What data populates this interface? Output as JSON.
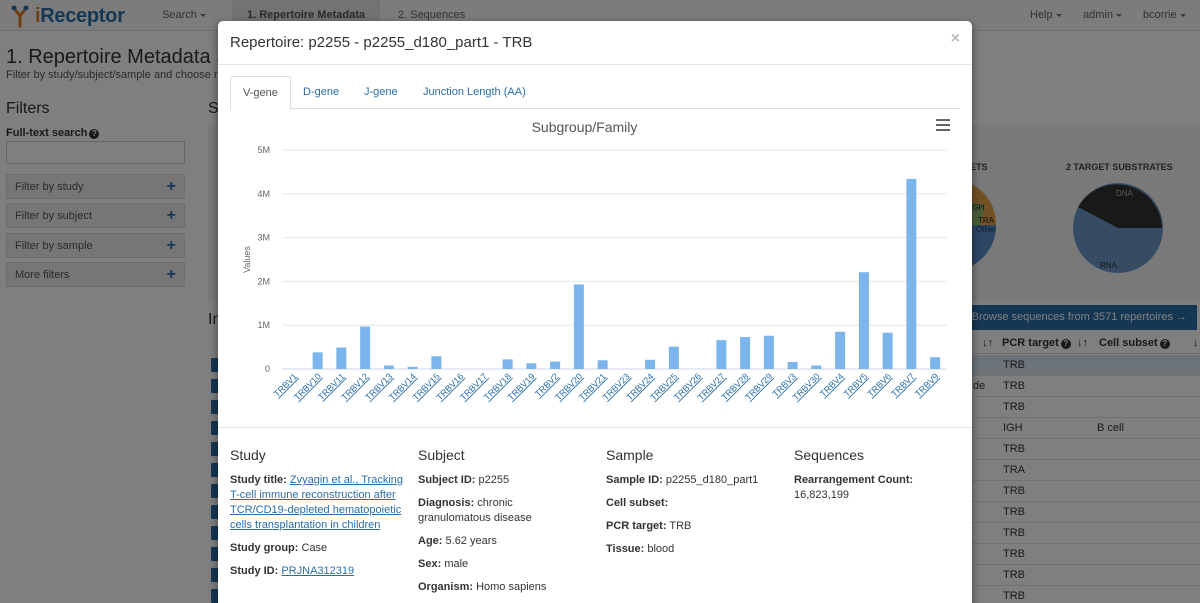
{
  "nav": {
    "logo_i": "i",
    "logo_rest": "Receptor",
    "search": "Search",
    "metadata": "1. Repertoire Metadata",
    "sequences": "2. Sequences",
    "help": "Help",
    "admin": "admin",
    "user": "bcorrie"
  },
  "page": {
    "title": "1. Repertoire Metadata Se",
    "subtitle": "Filter by study/subject/sample and choose re"
  },
  "filters": {
    "heading": "Filters",
    "fulltext_label": "Full-text search",
    "fulltext_value": "",
    "items": [
      "Filter by study",
      "Filter by subject",
      "Filter by sample",
      "More filters"
    ]
  },
  "background": {
    "section_letter_s": "S",
    "section_letter_i": "In",
    "sets_label": "ETS",
    "target_substrates": "2 TARGET SUBSTRATES",
    "browse_button": "Browse sequences from 3571 repertoires →",
    "table_headers": [
      "PCR target",
      "Cell subset"
    ],
    "rows": [
      {
        "pre": "",
        "pcr": "TRB",
        "cell": ""
      },
      {
        "pre": "de",
        "pcr": "TRB",
        "cell": ""
      },
      {
        "pre": "",
        "pcr": "TRB",
        "cell": ""
      },
      {
        "pre": "",
        "pcr": "IGH",
        "cell": "B cell"
      },
      {
        "pre": "",
        "pcr": "TRB",
        "cell": ""
      },
      {
        "pre": "",
        "pcr": "TRA",
        "cell": ""
      },
      {
        "pre": "",
        "pcr": "TRB",
        "cell": ""
      },
      {
        "pre": "",
        "pcr": "TRB",
        "cell": ""
      },
      {
        "pre": "",
        "pcr": "TRB",
        "cell": ""
      },
      {
        "pre": "",
        "pcr": "TRB",
        "cell": ""
      },
      {
        "pre": "",
        "pcr": "TRB",
        "cell": ""
      },
      {
        "pre": "",
        "pcr": "TRB",
        "cell": ""
      }
    ],
    "pie1_labels": {
      "a": "IGH",
      "b": "TRA",
      "c": "Other"
    },
    "pie2_labels": {
      "a": "DNA",
      "b": "RNA"
    }
  },
  "modal": {
    "title": "Repertoire: p2255 - p2255_d180_part1 - TRB",
    "close": "×",
    "tabs": [
      "V-gene",
      "D-gene",
      "J-gene",
      "Junction Length (AA)"
    ]
  },
  "chart_data": {
    "type": "bar",
    "title": "Subgroup/Family",
    "xlabel": "",
    "ylabel": "Values",
    "ylim": [
      0,
      5000000
    ],
    "y_ticks": [
      "0",
      "1M",
      "2M",
      "3M",
      "4M",
      "5M"
    ],
    "y_tick_values": [
      0,
      1000000,
      2000000,
      3000000,
      4000000,
      5000000
    ],
    "categories": [
      "TRBV1",
      "TRBV10",
      "TRBV11",
      "TRBV12",
      "TRBV13",
      "TRBV14",
      "TRBV15",
      "TRBV16",
      "TRBV17",
      "TRBV18",
      "TRBV19",
      "TRBV2",
      "TRBV20",
      "TRBV21",
      "TRBV23",
      "TRBV24",
      "TRBV25",
      "TRBV26",
      "TRBV27",
      "TRBV28",
      "TRBV29",
      "TRBV3",
      "TRBV30",
      "TRBV4",
      "TRBV5",
      "TRBV6",
      "TRBV7",
      "TRBV9"
    ],
    "values": [
      0,
      380000,
      490000,
      970000,
      80000,
      50000,
      290000,
      0,
      0,
      220000,
      130000,
      170000,
      1930000,
      200000,
      0,
      210000,
      510000,
      0,
      660000,
      730000,
      760000,
      160000,
      80000,
      850000,
      2210000,
      830000,
      4340000,
      270000
    ],
    "bar_color": "#7cb5ec",
    "legend": "none",
    "grid": true
  },
  "info": {
    "study": {
      "heading": "Study",
      "title_label": "Study title:",
      "title_value": "Zvyagin et al., Tracking T-cell immune reconstruction after TCR/CD19-depleted hematopoietic cells transplantation in children",
      "group_label": "Study group:",
      "group_value": "Case",
      "id_label": "Study ID:",
      "id_value": "PRJNA312319"
    },
    "subject": {
      "heading": "Subject",
      "id_label": "Subject ID:",
      "id_value": "p2255",
      "diagnosis_label": "Diagnosis:",
      "diagnosis_value": "chronic granulomatous disease",
      "age_label": "Age:",
      "age_value": "5.62 years",
      "sex_label": "Sex:",
      "sex_value": "male",
      "organism_label": "Organism:",
      "organism_value": "Homo sapiens"
    },
    "sample": {
      "heading": "Sample",
      "id_label": "Sample ID:",
      "id_value": "p2255_d180_part1",
      "cell_label": "Cell subset:",
      "cell_value": "",
      "pcr_label": "PCR target:",
      "pcr_value": "TRB",
      "tissue_label": "Tissue:",
      "tissue_value": "blood"
    },
    "sequences": {
      "heading": "Sequences",
      "count_label": "Rearrangement Count:",
      "count_value": "16,823,199"
    }
  }
}
